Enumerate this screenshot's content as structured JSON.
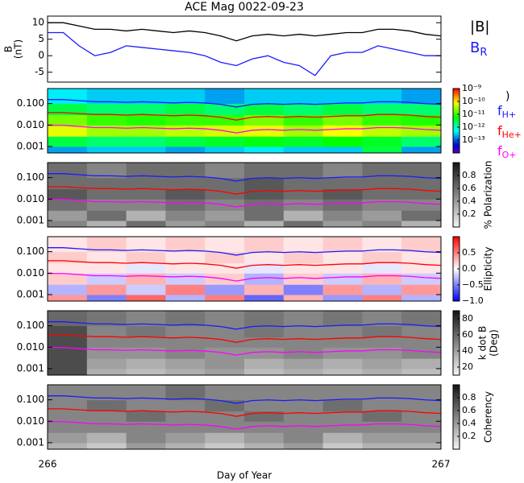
{
  "chart_data": [
    {
      "type": "line",
      "title": "ACE Mag 0022-09-23",
      "ylabel": [
        "B",
        "(nT)"
      ],
      "xlim": [
        266,
        267
      ],
      "ylim": [
        -8,
        12
      ],
      "yticks": [
        -5,
        0,
        5,
        10
      ],
      "x": [
        266.0,
        266.04,
        266.08,
        266.12,
        266.16,
        266.2,
        266.24,
        266.28,
        266.32,
        266.36,
        266.4,
        266.44,
        266.48,
        266.52,
        266.56,
        266.6,
        266.64,
        266.68,
        266.72,
        266.76,
        266.8,
        266.84,
        266.88,
        266.92,
        266.96,
        267.0
      ],
      "series": [
        {
          "name": "|B|",
          "color": "#000000",
          "values": [
            10,
            10,
            9,
            8,
            8,
            7.5,
            8,
            7.5,
            7,
            7.5,
            7,
            6,
            4.5,
            6,
            6.5,
            6,
            6.5,
            6,
            6.5,
            7,
            7,
            8,
            8,
            7.5,
            6.5,
            6
          ]
        },
        {
          "name": "B",
          "name_sub": "R",
          "color": "#1a1aff",
          "values": [
            7,
            7,
            3,
            0,
            1,
            3,
            2.5,
            2,
            1.5,
            1,
            0,
            -2,
            -3,
            -1,
            0,
            -2,
            -3,
            -6,
            0,
            1,
            1,
            3,
            2,
            1,
            0,
            0
          ]
        }
      ]
    },
    {
      "type": "heatmap",
      "colormap": "rainbow",
      "zlog": true,
      "colorbar_label": ")",
      "xlim": [
        266,
        267
      ],
      "ylim": [
        0.0005,
        0.5
      ],
      "ylog": true,
      "yticks": [
        0.001,
        {
          "value": 0.01,
          "label": "0.010"
        },
        {
          "value": 0.1,
          "label": "0.100"
        }
      ],
      "zlim": [
        1e-14,
        1e-09
      ],
      "zticks": [
        {
          "value": 1e-13,
          "label": "10⁻¹³"
        },
        {
          "value": 1e-12,
          "label": "10⁻¹²"
        },
        {
          "value": 1e-11,
          "label": "10⁻¹¹"
        },
        {
          "value": 1e-10,
          "label": "10⁻¹⁰"
        },
        {
          "value": 1e-09,
          "label": "10⁻⁹"
        }
      ],
      "xbins": [
        266.0,
        266.1,
        266.2,
        266.3,
        266.4,
        266.5,
        266.6,
        266.7,
        266.8,
        266.9,
        267.0
      ],
      "ybins": [
        0.0005,
        0.001,
        0.003,
        0.01,
        0.03,
        0.1,
        0.5
      ],
      "z": [
        [
          2e-13,
          3e-13,
          3e-13,
          2e-13,
          3e-13,
          4e-13,
          3e-13,
          3e-13,
          3e-12,
          2e-13
        ],
        [
          3e-12,
          2e-12,
          2e-12,
          3e-12,
          4e-12,
          5e-12,
          4e-12,
          6e-12,
          4e-12,
          2e-12
        ],
        [
          6e-11,
          3e-11,
          3e-11,
          4e-11,
          5e-11,
          6e-11,
          3e-11,
          7e-11,
          4e-11,
          3e-11
        ],
        [
          2e-11,
          1e-11,
          8e-12,
          1e-11,
          1e-11,
          2e-11,
          1e-11,
          2e-11,
          1e-11,
          8e-12
        ],
        [
          3e-12,
          2e-12,
          2e-12,
          3e-12,
          2e-12,
          3e-12,
          2e-12,
          3e-12,
          2e-12,
          2e-12
        ],
        [
          4e-13,
          3e-13,
          3e-13,
          3e-13,
          2e-13,
          3e-13,
          3e-13,
          3e-13,
          3e-13,
          2e-13
        ]
      ],
      "x": [
        266.0,
        266.04,
        266.08,
        266.12,
        266.16,
        266.2,
        266.24,
        266.28,
        266.32,
        266.36,
        266.4,
        266.44,
        266.48,
        266.52,
        266.56,
        266.6,
        266.64,
        266.68,
        266.72,
        266.76,
        266.8,
        266.84,
        266.88,
        266.92,
        266.96,
        267.0
      ],
      "series": [
        {
          "name": "f",
          "name_sub": "H+",
          "color": "#1a1aff",
          "values": [
            0.153,
            0.153,
            0.137,
            0.122,
            0.122,
            0.114,
            0.122,
            0.114,
            0.107,
            0.114,
            0.107,
            0.092,
            0.069,
            0.092,
            0.099,
            0.092,
            0.099,
            0.092,
            0.099,
            0.107,
            0.107,
            0.122,
            0.122,
            0.114,
            0.099,
            0.092
          ]
        },
        {
          "name": "f",
          "name_sub": "He+",
          "color": "#ff0000",
          "values": [
            0.038,
            0.038,
            0.034,
            0.031,
            0.031,
            0.029,
            0.031,
            0.029,
            0.027,
            0.029,
            0.027,
            0.023,
            0.017,
            0.023,
            0.025,
            0.023,
            0.025,
            0.023,
            0.025,
            0.027,
            0.027,
            0.031,
            0.031,
            0.029,
            0.025,
            0.023
          ]
        },
        {
          "name": "f",
          "name_sub": "O+",
          "color": "#ff00ff",
          "values": [
            0.0096,
            0.0096,
            0.0086,
            0.0076,
            0.0076,
            0.0071,
            0.0076,
            0.0071,
            0.0067,
            0.0071,
            0.0067,
            0.0057,
            0.0043,
            0.0057,
            0.0062,
            0.0057,
            0.0062,
            0.0057,
            0.0062,
            0.0067,
            0.0067,
            0.0076,
            0.0076,
            0.0071,
            0.0062,
            0.0057
          ]
        }
      ]
    },
    {
      "type": "heatmap",
      "colormap": "gray",
      "colorbar_label": [
        "% Polarization"
      ],
      "xlim": [
        266,
        267
      ],
      "ylim": [
        0.0005,
        0.5
      ],
      "ylog": true,
      "yticks": [
        0.001,
        {
          "value": 0.01,
          "label": "0.010"
        },
        {
          "value": 0.1,
          "label": "0.100"
        }
      ],
      "zlim": [
        0,
        1
      ],
      "zticks": [
        0.2,
        0.4,
        0.6,
        0.8
      ],
      "xbins": [
        266.0,
        266.1,
        266.2,
        266.3,
        266.4,
        266.5,
        266.6,
        266.7,
        266.8,
        266.9,
        267.0
      ],
      "ybins": [
        0.0005,
        0.001,
        0.003,
        0.01,
        0.03,
        0.1,
        0.5
      ],
      "z": [
        [
          0.5,
          0.3,
          0.6,
          0.4,
          0.5,
          0.3,
          0.6,
          0.4,
          0.5,
          0.3
        ],
        [
          0.4,
          0.6,
          0.3,
          0.5,
          0.4,
          0.6,
          0.3,
          0.5,
          0.4,
          0.6
        ],
        [
          0.6,
          0.5,
          0.5,
          0.6,
          0.5,
          0.6,
          0.5,
          0.6,
          0.5,
          0.5
        ],
        [
          0.7,
          0.6,
          0.6,
          0.7,
          0.6,
          0.7,
          0.6,
          0.7,
          0.6,
          0.6
        ],
        [
          0.6,
          0.6,
          0.6,
          0.6,
          0.6,
          0.7,
          0.6,
          0.6,
          0.6,
          0.6
        ],
        [
          0.6,
          0.5,
          0.6,
          0.6,
          0.5,
          0.6,
          0.6,
          0.5,
          0.6,
          0.6
        ]
      ]
    },
    {
      "type": "heatmap",
      "colormap": "bwr",
      "colorbar_label": [
        "Ellipticity"
      ],
      "xlim": [
        266,
        267
      ],
      "ylim": [
        0.0005,
        0.5
      ],
      "ylog": true,
      "yticks": [
        0.001,
        {
          "value": 0.01,
          "label": "0.010"
        },
        {
          "value": 0.1,
          "label": "0.100"
        }
      ],
      "zlim": [
        -1,
        1
      ],
      "zticks": [
        {
          "value": -1,
          "label": "−1.0"
        },
        {
          "value": -0.5,
          "label": "−0.5"
        },
        {
          "value": 0,
          "label": "0.0"
        },
        0.5
      ],
      "xbins": [
        266.0,
        266.1,
        266.2,
        266.3,
        266.4,
        266.5,
        266.6,
        266.7,
        266.8,
        266.9,
        267.0
      ],
      "ybins": [
        0.0005,
        0.001,
        0.003,
        0.01,
        0.03,
        0.1,
        0.5
      ],
      "z": [
        [
          0.4,
          -0.5,
          0.6,
          -0.3,
          0.5,
          -0.6,
          0.3,
          -0.4,
          0.5,
          -0.3
        ],
        [
          -0.3,
          0.4,
          -0.2,
          0.5,
          -0.4,
          0.3,
          -0.5,
          0.4,
          -0.3,
          0.4
        ],
        [
          0.2,
          -0.2,
          0.3,
          -0.2,
          0.2,
          -0.3,
          0.2,
          -0.2,
          0.3,
          -0.2
        ],
        [
          0.1,
          0.1,
          -0.1,
          0.1,
          0.1,
          -0.1,
          0.1,
          0.1,
          -0.1,
          0.1
        ],
        [
          0.2,
          0.1,
          0.2,
          0.1,
          0.2,
          0.1,
          0.2,
          0.1,
          0.2,
          0.1
        ],
        [
          0.1,
          0.2,
          0.1,
          0.2,
          0.1,
          0.2,
          0.1,
          0.2,
          0.1,
          0.2
        ]
      ]
    },
    {
      "type": "heatmap",
      "colormap": "gray",
      "colorbar_label": [
        "k dot B",
        "(Deg)"
      ],
      "xlim": [
        266,
        267
      ],
      "ylim": [
        0.0005,
        0.5
      ],
      "ylog": true,
      "yticks": [
        0.001,
        {
          "value": 0.01,
          "label": "0.010"
        },
        {
          "value": 0.1,
          "label": "0.100"
        }
      ],
      "zlim": [
        10,
        90
      ],
      "zticks": [
        20,
        40,
        60,
        80
      ],
      "xbins": [
        266.0,
        266.1,
        266.2,
        266.3,
        266.4,
        266.5,
        266.6,
        266.7,
        266.8,
        266.9,
        267.0
      ],
      "ybins": [
        0.0005,
        0.001,
        0.003,
        0.01,
        0.03,
        0.1,
        0.5
      ],
      "z": [
        [
          70,
          35,
          30,
          35,
          40,
          30,
          35,
          30,
          35,
          30
        ],
        [
          70,
          40,
          35,
          40,
          45,
          35,
          40,
          35,
          40,
          35
        ],
        [
          70,
          45,
          45,
          50,
          45,
          45,
          50,
          45,
          45,
          50
        ],
        [
          70,
          50,
          50,
          50,
          50,
          50,
          50,
          50,
          50,
          50
        ],
        [
          70,
          50,
          55,
          50,
          50,
          55,
          50,
          50,
          55,
          50
        ],
        [
          60,
          55,
          50,
          55,
          50,
          55,
          50,
          55,
          50,
          55
        ]
      ]
    },
    {
      "type": "heatmap",
      "colormap": "gray",
      "colorbar_label": [
        "Coherency"
      ],
      "xlim": [
        266,
        267
      ],
      "ylim": [
        0.0005,
        0.5
      ],
      "ylog": true,
      "yticks": [
        0.001,
        {
          "value": 0.01,
          "label": "0.010"
        },
        {
          "value": 0.1,
          "label": "0.100"
        }
      ],
      "zlim": [
        0,
        1
      ],
      "zticks": [
        0.2,
        0.4,
        0.6,
        0.8
      ],
      "xbins": [
        266.0,
        266.1,
        266.2,
        266.3,
        266.4,
        266.5,
        266.6,
        266.7,
        266.8,
        266.9,
        267.0
      ],
      "ybins": [
        0.0005,
        0.001,
        0.003,
        0.01,
        0.03,
        0.1,
        0.5
      ],
      "z": [
        [
          0.3,
          0.2,
          0.4,
          0.3,
          0.2,
          0.3,
          0.4,
          0.2,
          0.3,
          0.3
        ],
        [
          0.4,
          0.3,
          0.5,
          0.4,
          0.3,
          0.4,
          0.5,
          0.3,
          0.4,
          0.4
        ],
        [
          0.5,
          0.5,
          0.5,
          0.5,
          0.5,
          0.5,
          0.5,
          0.5,
          0.5,
          0.5
        ],
        [
          0.5,
          0.5,
          0.6,
          0.5,
          0.5,
          0.6,
          0.5,
          0.5,
          0.6,
          0.5
        ],
        [
          0.5,
          0.6,
          0.5,
          0.5,
          0.6,
          0.5,
          0.5,
          0.6,
          0.5,
          0.5
        ],
        [
          0.5,
          0.5,
          0.5,
          0.6,
          0.5,
          0.5,
          0.5,
          0.5,
          0.5,
          0.5
        ]
      ],
      "xlabel": "Day of Year",
      "xticks": [
        266,
        267
      ]
    }
  ]
}
